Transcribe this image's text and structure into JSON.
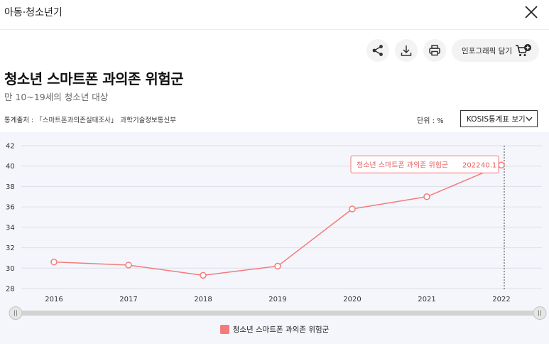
{
  "header": {
    "section_title": "아동·청소년기"
  },
  "actions": {
    "infographic_label": "인포그래픽 담기"
  },
  "page": {
    "title": "청소년 스마트폰 과의존 위험군",
    "subtitle": "만 10~19세의 청소년 대상",
    "source_label": "통계출처 : 「스마트폰과의존실태조사」",
    "source_org": "과학기술정보통신부",
    "unit_label": "단위 : %",
    "kosis_button_label": "KOSIS통계표 보기"
  },
  "colors": {
    "series": "#f47b7b",
    "grid": "#dcdfe6",
    "axis_text": "#333333"
  },
  "chart_data": {
    "type": "line",
    "x": [
      "2016",
      "2017",
      "2018",
      "2019",
      "2020",
      "2021",
      "2022"
    ],
    "series": [
      {
        "name": "청소년 스마트폰 과의존 위험군",
        "values": [
          30.6,
          30.3,
          29.3,
          30.2,
          35.8,
          37.0,
          40.1
        ]
      }
    ],
    "ylim": [
      28,
      42
    ],
    "yticks": [
      "28",
      "30",
      "32",
      "34",
      "36",
      "38",
      "40",
      "42"
    ],
    "grid": true,
    "legend_position": "bottom",
    "tooltip": {
      "series": "청소년 스마트폰 과의존 위험군",
      "x": "2022",
      "value": "40.1"
    }
  }
}
